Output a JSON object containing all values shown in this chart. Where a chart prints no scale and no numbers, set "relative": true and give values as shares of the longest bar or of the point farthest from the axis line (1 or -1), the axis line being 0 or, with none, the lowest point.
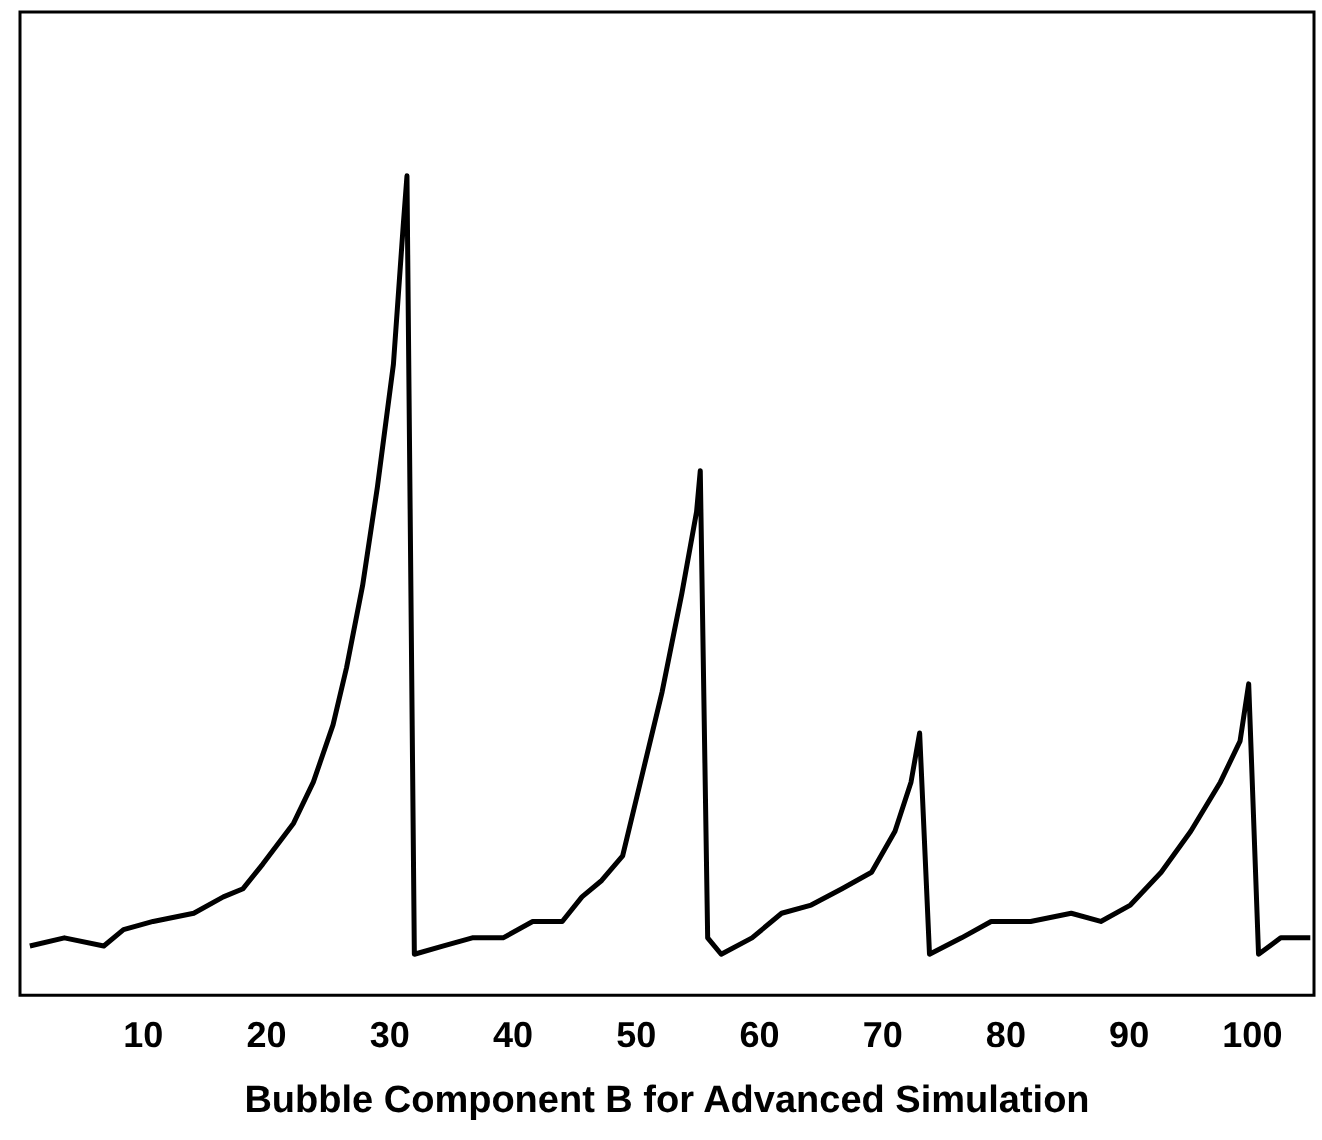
{
  "chart_data": {
    "type": "line",
    "xlabel": "Bubble Component B for Advanced Simulation",
    "relative": true,
    "xlim": [
      0,
      105
    ],
    "xticks": [
      10,
      20,
      30,
      40,
      50,
      60,
      70,
      80,
      90,
      100
    ],
    "tick_labels": "x",
    "grid": false,
    "legend": false,
    "marker": "none",
    "line_style": "solid",
    "series": [
      {
        "color": "#000000",
        "x": [
          0.8,
          3.6,
          6.8,
          8.4,
          10.8,
          14.1,
          16.5,
          18.1,
          19.7,
          22.2,
          23.8,
          25.4,
          26.5,
          27.8,
          29.0,
          30.3,
          31.1,
          31.4,
          32.0,
          34.3,
          36.7,
          39.2,
          41.6,
          44.0,
          45.6,
          47.2,
          48.9,
          50.5,
          52.1,
          53.7,
          54.9,
          55.2,
          55.8,
          56.9,
          59.4,
          61.8,
          64.2,
          66.7,
          69.1,
          71.0,
          72.3,
          73.0,
          73.8,
          76.4,
          78.8,
          82.0,
          85.3,
          87.7,
          90.1,
          92.6,
          95.0,
          97.4,
          99.0,
          99.7,
          100.5,
          102.3,
          104.7
        ],
        "values": [
          0.06,
          0.07,
          0.06,
          0.08,
          0.09,
          0.1,
          0.12,
          0.13,
          0.16,
          0.21,
          0.26,
          0.33,
          0.4,
          0.5,
          0.62,
          0.77,
          0.94,
          1,
          0.05,
          0.06,
          0.07,
          0.07,
          0.09,
          0.09,
          0.12,
          0.14,
          0.17,
          0.27,
          0.37,
          0.49,
          0.59,
          0.64,
          0.07,
          0.05,
          0.07,
          0.1,
          0.11,
          0.13,
          0.15,
          0.2,
          0.26,
          0.32,
          0.05,
          0.07,
          0.09,
          0.09,
          0.1,
          0.09,
          0.11,
          0.15,
          0.2,
          0.26,
          0.31,
          0.38,
          0.05,
          0.07,
          0.07
        ]
      }
    ]
  }
}
